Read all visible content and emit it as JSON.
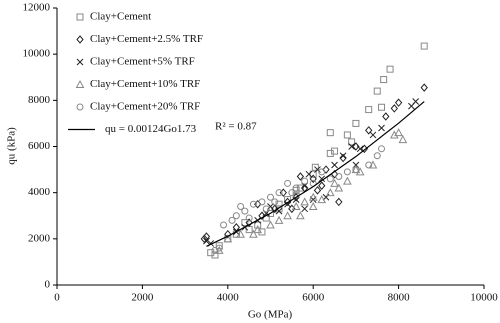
{
  "chart_data": {
    "type": "scatter",
    "x_label": "Go (MPa)",
    "y_label": "qu (kPa)",
    "xlim": [
      0,
      10000
    ],
    "xticks": [
      0,
      2000,
      4000,
      6000,
      8000,
      10000
    ],
    "ylim": [
      0,
      12000
    ],
    "yticks": [
      0,
      2000,
      4000,
      6000,
      8000,
      10000,
      12000
    ],
    "legend": "upper left",
    "series": [
      {
        "name": "Clay+Cement",
        "marker": "square",
        "color": "#888888",
        "x": [
          8600,
          7800,
          7650,
          7500,
          7600,
          7300,
          7000,
          6800,
          6400,
          6500,
          6400,
          6050,
          6000,
          5700,
          5400,
          5200,
          5000,
          4900,
          4700,
          4500,
          4200,
          4000,
          3800,
          3600,
          3700,
          4400,
          5200,
          5600,
          6900,
          4800
        ],
        "values": [
          10350,
          9350,
          8900,
          8400,
          7700,
          7600,
          7000,
          6500,
          6600,
          5800,
          5700,
          5100,
          4800,
          4200,
          3700,
          3500,
          3100,
          2900,
          2600,
          2400,
          2200,
          2000,
          1700,
          1400,
          1300,
          2700,
          3300,
          4100,
          6200,
          2300
        ]
      },
      {
        "name": "Clay+Cement+2.5% TRF",
        "marker": "diamond",
        "color": "#222222",
        "x": [
          8600,
          8000,
          7900,
          7700,
          7300,
          7000,
          6700,
          6500,
          6200,
          6000,
          5800,
          5600,
          5400,
          5100,
          4800,
          4500,
          4200,
          3500,
          3450,
          4000,
          5300,
          6300,
          6100,
          5500,
          6600,
          7200,
          4700,
          5700
        ],
        "values": [
          8550,
          7900,
          7650,
          7300,
          6700,
          6000,
          5500,
          4800,
          4300,
          4600,
          4200,
          3800,
          3600,
          3300,
          3000,
          2700,
          2500,
          2100,
          2000,
          2200,
          4000,
          5000,
          4100,
          3300,
          3600,
          5900,
          3500,
          4700
        ]
      },
      {
        "name": "Clay+Cement+5% TRF",
        "marker": "cross",
        "color": "#222222",
        "x": [
          8400,
          8300,
          7600,
          7400,
          7100,
          6900,
          6700,
          6500,
          6200,
          6100,
          5900,
          5800,
          5600,
          5400,
          5200,
          4900,
          4700,
          4400,
          4200,
          3600,
          3500,
          5800,
          6000,
          5000,
          6300,
          7000
        ],
        "values": [
          7950,
          7750,
          6800,
          6500,
          5900,
          6000,
          5600,
          5200,
          4600,
          5000,
          4800,
          4300,
          3700,
          3500,
          3200,
          3100,
          2800,
          2500,
          2300,
          1800,
          1900,
          3300,
          3700,
          3400,
          3800,
          5200
        ]
      },
      {
        "name": "Clay+Cement+10% TRF",
        "marker": "triangle",
        "color": "#888888",
        "x": [
          8000,
          8100,
          7900,
          7400,
          7100,
          6800,
          6600,
          6400,
          6200,
          6000,
          5800,
          5600,
          5400,
          5200,
          5000,
          4700,
          4600,
          4300,
          4000,
          3800,
          6000,
          5700,
          6500,
          7000
        ],
        "values": [
          6600,
          6300,
          6500,
          5200,
          4900,
          4500,
          4200,
          4000,
          3700,
          3800,
          3600,
          3400,
          3000,
          2800,
          2600,
          2400,
          2200,
          2200,
          2000,
          1500,
          3400,
          3000,
          4400,
          5000
        ]
      },
      {
        "name": "Clay+Cement+20% TRF",
        "marker": "circle",
        "color": "#888888",
        "x": [
          7600,
          7500,
          7300,
          7000,
          6800,
          6600,
          6400,
          6200,
          6000,
          5800,
          5600,
          5500,
          5400,
          5200,
          5000,
          4800,
          4600,
          4400,
          4300,
          4100,
          3900,
          3800,
          3700,
          4200,
          5600,
          5100,
          4500,
          4900
        ],
        "values": [
          5900,
          5600,
          5200,
          5000,
          4900,
          4700,
          4600,
          4900,
          4400,
          4500,
          4200,
          4000,
          4400,
          4000,
          3800,
          3600,
          3500,
          3200,
          3400,
          2800,
          2600,
          1600,
          1500,
          3000,
          3900,
          3600,
          2900,
          3300
        ]
      },
      {
        "name": "qu = 0.00124Go1.73",
        "marker": "line",
        "color": "#000000",
        "x": [
          3500,
          4000,
          5000,
          6000,
          7000,
          8000,
          8600
        ],
        "values": [
          1677,
          2113,
          3109,
          4262,
          5565,
          7011,
          7945
        ]
      }
    ],
    "annotation": "R² = 0.87"
  }
}
